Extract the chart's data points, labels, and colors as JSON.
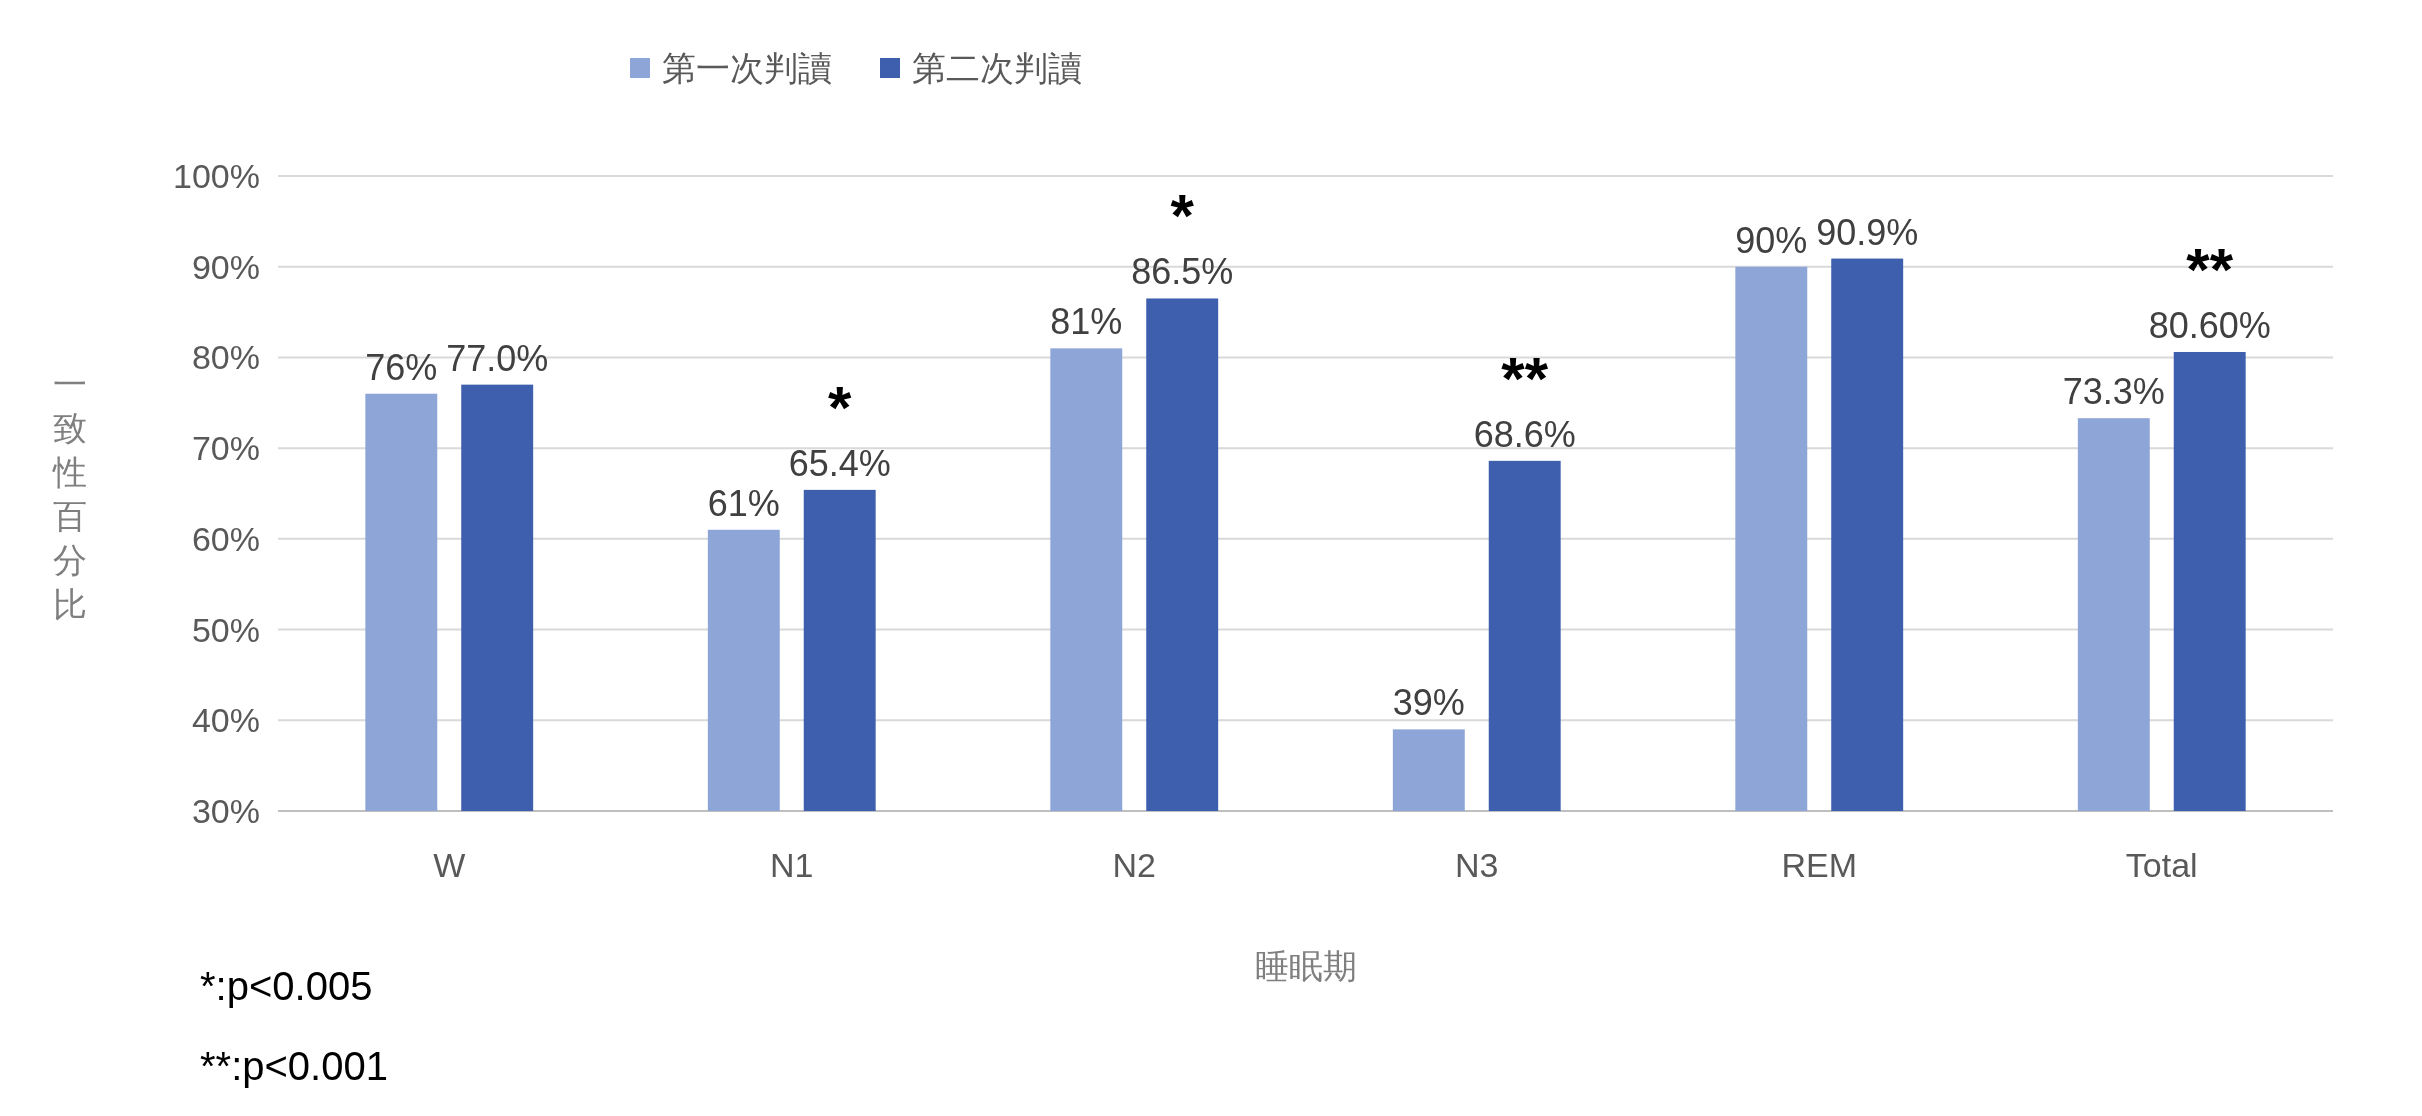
{
  "chart_data": {
    "type": "bar",
    "xlabel": "睡眠期",
    "ylabel": "一致性百分比",
    "categories": [
      "W",
      "N1",
      "N2",
      "N3",
      "REM",
      "Total"
    ],
    "series": [
      {
        "name": "第一次判讀",
        "color": "#8ea5d8",
        "values": [
          76,
          61,
          81,
          39,
          90,
          73.3
        ],
        "value_labels": [
          "76%",
          "61%",
          "81%",
          "39%",
          "90%",
          "73.3%"
        ]
      },
      {
        "name": "第二次判讀",
        "color": "#3d5fae",
        "values": [
          77.0,
          65.4,
          86.5,
          68.6,
          90.9,
          80.6
        ],
        "value_labels": [
          "77.0%",
          "*\n65.4%",
          "*\n86.5%",
          "**\n68.6%",
          "90.9%",
          "**\n80.60%"
        ]
      }
    ],
    "ylim": [
      30,
      100
    ],
    "yticks": [
      {
        "value": 30,
        "label": "30%"
      },
      {
        "value": 40,
        "label": "40%"
      },
      {
        "value": 50,
        "label": "50%"
      },
      {
        "value": 60,
        "label": "60%"
      },
      {
        "value": 70,
        "label": "70%"
      },
      {
        "value": 80,
        "label": "80%"
      },
      {
        "value": 90,
        "label": "90%"
      },
      {
        "value": 100,
        "label": "100%"
      }
    ],
    "grid": "y",
    "legend": "top",
    "annotations": [
      "*:p<0.005",
      "**:p<0.001"
    ]
  }
}
